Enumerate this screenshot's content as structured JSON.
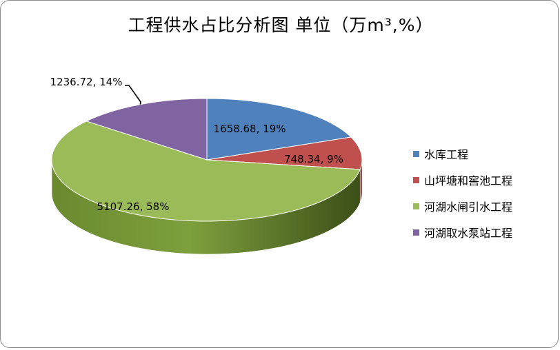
{
  "title": "工程供水占比分析图 单位（万m³,%）",
  "chart_data": {
    "type": "pie",
    "title": "工程供水占比分析图 单位（万m³,%）",
    "slices": [
      {
        "name": "水库工程",
        "value": 1658.68,
        "percent": 19,
        "label": "1658.68, 19%",
        "color": "#4f81bd"
      },
      {
        "name": "山坪塘和窖池工程",
        "value": 748.34,
        "percent": 9,
        "label": "748.34, 9%",
        "color": "#c0504d"
      },
      {
        "name": "河湖水闸引水工程",
        "value": 5107.26,
        "percent": 58,
        "label": "5107.26, 58%",
        "color": "#9bbb59"
      },
      {
        "name": "河湖取水泵站工程",
        "value": 1236.72,
        "percent": 14,
        "label": "1236.72, 14%",
        "color": "#8064a2"
      }
    ],
    "legend_position": "right",
    "style": "3d"
  },
  "legend": {
    "items": [
      {
        "label": "水库工程",
        "color": "#4f81bd"
      },
      {
        "label": "山坪塘和窖池工程",
        "color": "#c0504d"
      },
      {
        "label": "河湖水闸引水工程",
        "color": "#9bbb59"
      },
      {
        "label": "河湖取水泵站工程",
        "color": "#8064a2"
      }
    ]
  }
}
